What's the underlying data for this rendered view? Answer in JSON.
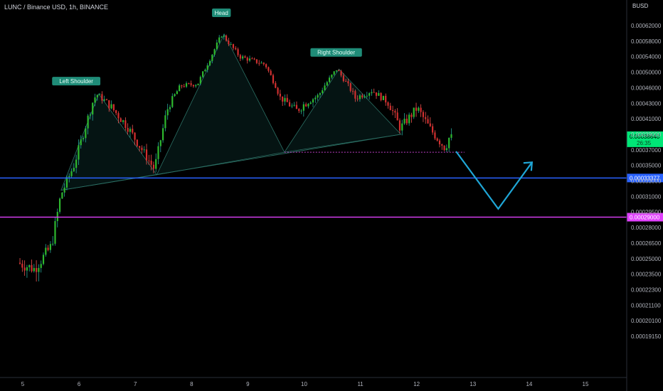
{
  "header": {
    "title": "LUNC / Binance USD, 1h, BINANCE",
    "currency": "BUSD"
  },
  "chart_data": {
    "type": "candlestick",
    "y_axis": {
      "ticks": [
        "0.00062000",
        "0.00058000",
        "0.00054000",
        "0.00050000",
        "0.00046000",
        "0.00043000",
        "0.00041000",
        "0.00039000",
        "0.00037000",
        "0.00035000",
        "0.00033000",
        "0.00031000",
        "0.00029500",
        "0.00028000",
        "0.00026500",
        "0.00025000",
        "0.00023500",
        "0.00022300",
        "0.00021100",
        "0.00020100",
        "0.00019150"
      ]
    },
    "x_axis": {
      "ticks": [
        "5",
        "6",
        "7",
        "8",
        "9",
        "10",
        "11",
        "12",
        "13",
        "14",
        "15"
      ]
    },
    "horizontal_levels": [
      {
        "value": 0.00033377,
        "label": "0.00033377",
        "color": "#2962ff"
      },
      {
        "value": 0.00029,
        "label": "0.00029000",
        "color": "#e040fb"
      }
    ],
    "last_price": {
      "value": 0.0003864,
      "label": "0.00038640",
      "color": "#00e676",
      "sub_label": "26:35"
    },
    "pattern_labels": [
      "Left Shoulder",
      "Head",
      "Right Shoulder"
    ],
    "pattern_points": {
      "left_shoulder_peak": {
        "x": 6.35,
        "y": 0.000448
      },
      "head_peak": {
        "x": 8.58,
        "y": 0.000598
      },
      "right_shoulder_peak": {
        "x": 10.62,
        "y": 0.000508
      },
      "neckline_start": {
        "x": 5.68,
        "y": 0.000318
      },
      "neckline_left_trough": {
        "x": 7.38,
        "y": 0.000338
      },
      "neckline_mid_trough": {
        "x": 9.65,
        "y": 0.000367
      },
      "neckline_end": {
        "x": 11.72,
        "y": 0.00039
      },
      "low_support": 0.000367
    },
    "projection": {
      "points": [
        {
          "x": 12.7,
          "y": 0.000368
        },
        {
          "x": 13.45,
          "y": 0.000298
        },
        {
          "x": 14.05,
          "y": 0.000354
        }
      ],
      "color": "#1fa6d6"
    }
  }
}
